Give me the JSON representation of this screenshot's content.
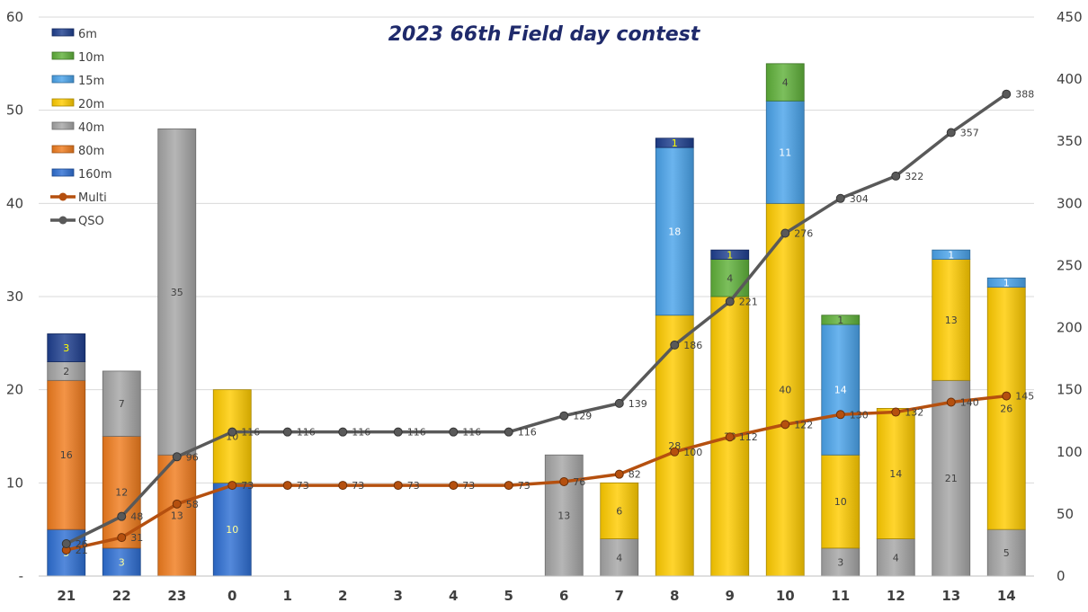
{
  "chart_data": {
    "type": "bar",
    "title": "2023 66th Field day contest",
    "xlabel": "",
    "ylabel": "",
    "ylim": [
      0,
      60
    ],
    "y2lim": [
      0,
      450
    ],
    "yticks": [
      "-",
      "10",
      "20",
      "30",
      "40",
      "50",
      "60"
    ],
    "y2ticks": [
      "0",
      "50",
      "100",
      "150",
      "200",
      "250",
      "300",
      "350",
      "400",
      "450"
    ],
    "grid": true,
    "legend_position": "top-left",
    "categories": [
      "21",
      "22",
      "23",
      "0",
      "1",
      "2",
      "3",
      "4",
      "5",
      "6",
      "7",
      "8",
      "9",
      "10",
      "11",
      "12",
      "13",
      "14"
    ],
    "stack_order": [
      "160m",
      "80m",
      "40m",
      "20m",
      "15m",
      "10m",
      "6m"
    ],
    "legend_order": [
      "6m",
      "10m",
      "15m",
      "20m",
      "40m",
      "80m",
      "160m",
      "Multi",
      "QSO"
    ],
    "series": [
      {
        "name": "160m",
        "kind": "bar",
        "color": "#2e6fd3",
        "label_color": "#ffff99",
        "values": [
          5,
          3,
          0,
          10,
          0,
          0,
          0,
          0,
          0,
          0,
          0,
          0,
          0,
          0,
          0,
          0,
          0,
          0
        ]
      },
      {
        "name": "80m",
        "kind": "bar",
        "color": "#f07c1e",
        "label_color": "#404040",
        "values": [
          16,
          12,
          13,
          0,
          0,
          0,
          0,
          0,
          0,
          0,
          0,
          0,
          0,
          0,
          0,
          0,
          0,
          0
        ]
      },
      {
        "name": "40m",
        "kind": "bar",
        "color": "#a6a6a6",
        "label_color": "#404040",
        "values": [
          2,
          7,
          35,
          0,
          0,
          0,
          0,
          0,
          0,
          13,
          4,
          0,
          0,
          0,
          3,
          4,
          21,
          5
        ]
      },
      {
        "name": "20m",
        "kind": "bar",
        "color": "#ffcc00",
        "label_color": "#404040",
        "values": [
          0,
          0,
          0,
          10,
          0,
          0,
          0,
          0,
          0,
          0,
          6,
          28,
          30,
          40,
          10,
          14,
          13,
          26
        ]
      },
      {
        "name": "15m",
        "kind": "bar",
        "color": "#4aa3ea",
        "label_color": "#ffffff",
        "values": [
          0,
          0,
          0,
          0,
          0,
          0,
          0,
          0,
          0,
          0,
          0,
          18,
          0,
          11,
          14,
          0,
          1,
          1
        ]
      },
      {
        "name": "10m",
        "kind": "bar",
        "color": "#5fb13a",
        "label_color": "#404040",
        "values": [
          0,
          0,
          0,
          0,
          0,
          0,
          0,
          0,
          0,
          0,
          0,
          0,
          4,
          4,
          1,
          0,
          0,
          0
        ]
      },
      {
        "name": "6m",
        "kind": "bar",
        "color": "#1f3f8f",
        "label_color": "#ffff00",
        "values": [
          3,
          0,
          0,
          0,
          0,
          0,
          0,
          0,
          0,
          0,
          0,
          1,
          1,
          0,
          0,
          0,
          0,
          0
        ]
      },
      {
        "name": "Multi",
        "kind": "line",
        "axis": "right",
        "color": "#b5500f",
        "values": [
          21,
          31,
          58,
          73,
          73,
          73,
          73,
          73,
          73,
          76,
          82,
          100,
          112,
          122,
          130,
          132,
          140,
          145
        ]
      },
      {
        "name": "QSO",
        "kind": "line",
        "axis": "right",
        "color": "#595959",
        "values": [
          26,
          48,
          96,
          116,
          116,
          116,
          116,
          116,
          116,
          129,
          139,
          186,
          221,
          276,
          304,
          322,
          357,
          388
        ]
      }
    ]
  }
}
